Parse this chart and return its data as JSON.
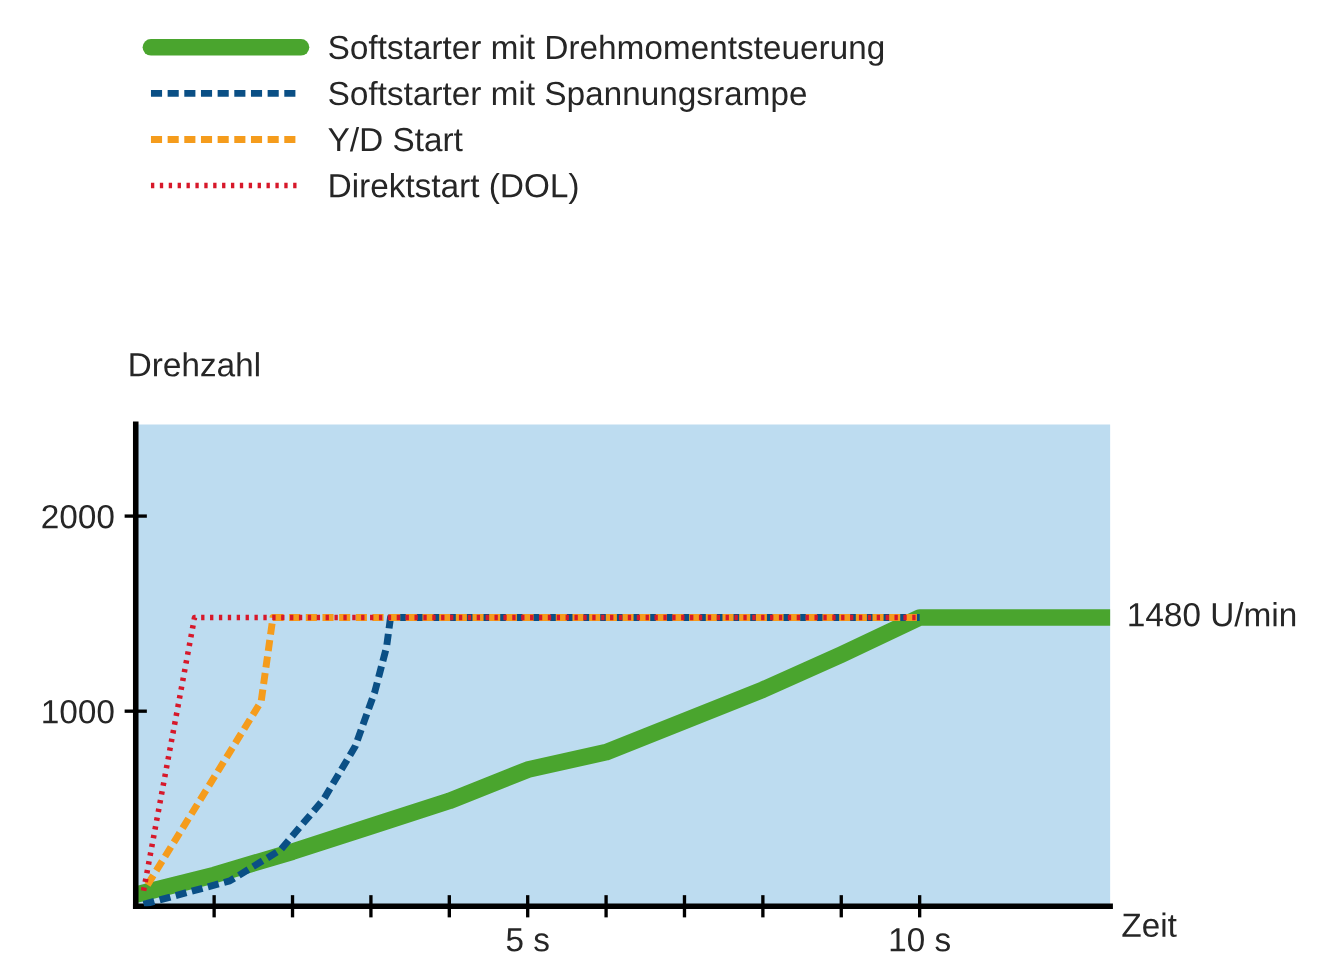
{
  "chart_data": {
    "type": "line",
    "xlabel": "Zeit",
    "ylabel": "Drehzahl",
    "xlim": [
      0,
      12.43
    ],
    "ylim": [
      0,
      2470
    ],
    "xticks": [
      {
        "value": 1,
        "label": null
      },
      {
        "value": 2,
        "label": null
      },
      {
        "value": 3,
        "label": null
      },
      {
        "value": 4,
        "label": null
      },
      {
        "value": 5,
        "label": "5 s"
      },
      {
        "value": 6,
        "label": null
      },
      {
        "value": 7,
        "label": null
      },
      {
        "value": 8,
        "label": null
      },
      {
        "value": 9,
        "label": null
      },
      {
        "value": 10,
        "label": "10 s"
      }
    ],
    "yticks": [
      1000,
      2000
    ],
    "grid": false,
    "legend": "top left",
    "series": [
      {
        "name": "Softstarter mit Drehmomentsteuerung",
        "color": "#4aa52e",
        "line_style": "solid",
        "x": [
          0,
          1,
          2,
          3,
          4,
          5,
          6,
          7,
          8,
          9,
          10,
          12.43
        ],
        "values": [
          60,
          160,
          280,
          410,
          540,
          700,
          790,
          950,
          1110,
          1290,
          1480,
          1480
        ]
      },
      {
        "name": "Softstarter mit Spannungsrampe",
        "color": "#0a4f85",
        "line_style": "dashed",
        "x": [
          0.1,
          1.2,
          1.85,
          2.4,
          2.8,
          3.05,
          3.2,
          3.25,
          10
        ],
        "values": [
          10,
          130,
          290,
          550,
          820,
          1100,
          1330,
          1480,
          1480
        ]
      },
      {
        "name": "Y/D Start",
        "color": "#f59c1c",
        "line_style": "dashed",
        "x": [
          0.15,
          1.6,
          1.75,
          10
        ],
        "values": [
          110,
          1050,
          1480,
          1480
        ]
      },
      {
        "name": "Direktstart (DOL)",
        "color": "#d7182a",
        "line_style": "dotted",
        "x": [
          0.1,
          0.75,
          10
        ],
        "values": [
          80,
          1480,
          1480
        ]
      }
    ],
    "annotations": [
      {
        "text": "1480 U/min",
        "x": 12.43,
        "y": 1480
      }
    ]
  }
}
